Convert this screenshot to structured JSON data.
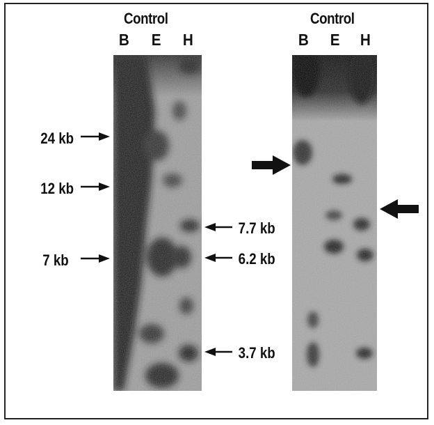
{
  "left_panel": {
    "title": "Control",
    "lanes": [
      "B",
      "E",
      "H"
    ],
    "left_markers": [
      "24 kb",
      "12 kb",
      "7 kb"
    ],
    "right_markers": [
      "7.7 kb",
      "6.2 kb",
      "3.7 kb"
    ]
  },
  "right_panel": {
    "title": "Control",
    "lanes": [
      "B",
      "E",
      "H"
    ]
  },
  "colors": {
    "ink": "#111111",
    "blot_light": "#a8a8a8",
    "blot_dark": "#151515"
  }
}
